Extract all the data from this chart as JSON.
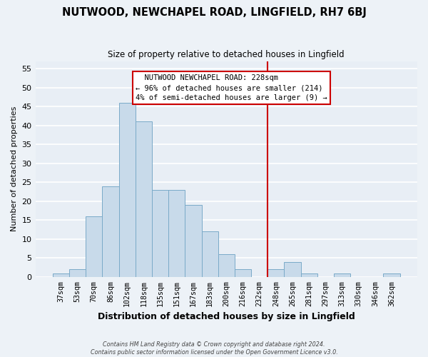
{
  "title": "NUTWOOD, NEWCHAPEL ROAD, LINGFIELD, RH7 6BJ",
  "subtitle": "Size of property relative to detached houses in Lingfield",
  "xlabel": "Distribution of detached houses by size in Lingfield",
  "ylabel": "Number of detached properties",
  "bar_labels": [
    "37sqm",
    "53sqm",
    "70sqm",
    "86sqm",
    "102sqm",
    "118sqm",
    "135sqm",
    "151sqm",
    "167sqm",
    "183sqm",
    "200sqm",
    "216sqm",
    "232sqm",
    "248sqm",
    "265sqm",
    "281sqm",
    "297sqm",
    "313sqm",
    "330sqm",
    "346sqm",
    "362sqm"
  ],
  "bar_values": [
    1,
    2,
    16,
    24,
    46,
    41,
    23,
    23,
    19,
    12,
    6,
    2,
    0,
    2,
    4,
    1,
    0,
    1,
    0,
    0,
    1
  ],
  "bar_color": "#c8daea",
  "bar_edge_color": "#7aaac8",
  "vline_x": 12.5,
  "vline_color": "#cc0000",
  "annotation_title": "NUTWOOD NEWCHAPEL ROAD: 228sqm",
  "annotation_line1": "← 96% of detached houses are smaller (214)",
  "annotation_line2": "4% of semi-detached houses are larger (9) →",
  "ylim": [
    0,
    57
  ],
  "yticks": [
    0,
    5,
    10,
    15,
    20,
    25,
    30,
    35,
    40,
    45,
    50,
    55
  ],
  "footer1": "Contains HM Land Registry data © Crown copyright and database right 2024.",
  "footer2": "Contains public sector information licensed under the Open Government Licence v3.0.",
  "bg_color": "#edf2f7",
  "plot_bg_color": "#e8eef5",
  "grid_color": "#ffffff"
}
